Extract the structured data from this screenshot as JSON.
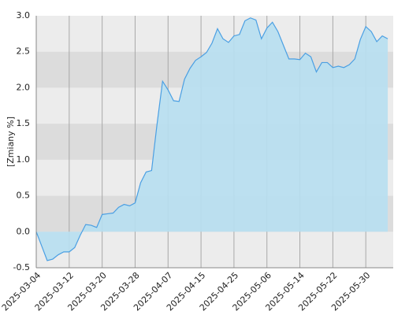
{
  "chart_data": {
    "type": "area",
    "y_label": "[Zmiany %]",
    "categories": [
      "2025-03-04",
      null,
      null,
      null,
      null,
      null,
      "2025-03-12",
      null,
      null,
      null,
      null,
      null,
      "2025-03-20",
      null,
      null,
      null,
      null,
      null,
      "2025-03-28",
      null,
      null,
      null,
      null,
      null,
      "2025-04-07",
      null,
      null,
      null,
      null,
      null,
      "2025-04-15",
      null,
      null,
      null,
      null,
      null,
      "2025-04-25",
      null,
      null,
      null,
      null,
      null,
      "2025-05-06",
      null,
      null,
      null,
      null,
      null,
      "2025-05-14",
      null,
      null,
      null,
      null,
      null,
      "2025-05-22",
      null,
      null,
      null,
      null,
      null,
      "2025-05-30",
      null,
      null,
      null,
      null
    ],
    "values": [
      0.0,
      -0.2,
      -0.4,
      -0.38,
      -0.32,
      -0.28,
      -0.28,
      -0.22,
      -0.05,
      0.1,
      0.09,
      0.06,
      0.24,
      0.25,
      0.26,
      0.34,
      0.38,
      0.36,
      0.4,
      0.68,
      0.83,
      0.85,
      1.5,
      2.09,
      1.97,
      1.82,
      1.81,
      2.12,
      2.27,
      2.38,
      2.43,
      2.49,
      2.62,
      2.82,
      2.68,
      2.63,
      2.72,
      2.74,
      2.93,
      2.97,
      2.94,
      2.68,
      2.83,
      2.91,
      2.78,
      2.59,
      2.4,
      2.4,
      2.39,
      2.48,
      2.43,
      2.22,
      2.35,
      2.35,
      2.28,
      2.3,
      2.28,
      2.32,
      2.4,
      2.67,
      2.85,
      2.78,
      2.64,
      2.72,
      2.68
    ],
    "color": "#4a9fe3",
    "ylim": [
      -0.5,
      3.0
    ],
    "yticks": [
      -0.5,
      {
        "value": 0.0,
        "label": "0.0"
      },
      0.5,
      {
        "value": 1.0,
        "label": "1.0"
      },
      1.5,
      {
        "value": 2.0,
        "label": "2.0"
      },
      2.5,
      {
        "value": 3.0,
        "label": "3.0"
      }
    ],
    "grid": true
  }
}
